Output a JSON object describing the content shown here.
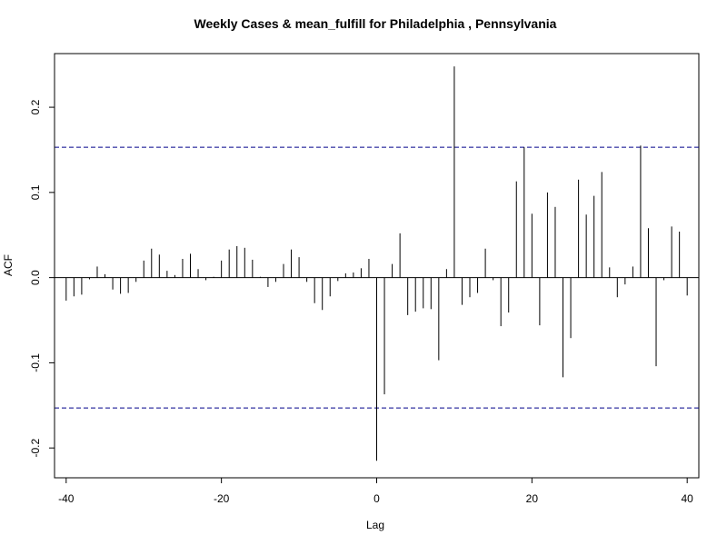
{
  "chart_data": {
    "type": "bar",
    "title": "Weekly Cases & mean_fulfill for Philadelphia , Pennsylvania",
    "xlabel": "Lag",
    "ylabel": "ACF",
    "xlim": [
      -41.5,
      41.5
    ],
    "ylim": [
      -0.235,
      0.263
    ],
    "x_ticks": [
      -40,
      -20,
      0,
      20,
      40
    ],
    "x_tick_labels": [
      "-40",
      "-20",
      "0",
      "20",
      "40"
    ],
    "y_ticks": [
      -0.2,
      -0.1,
      0.0,
      0.1,
      0.2
    ],
    "y_tick_labels": [
      "-0.2",
      "-0.1",
      "0.0",
      "0.1",
      "0.2"
    ],
    "confidence_bound": 0.153,
    "confidence_color": "#00008b",
    "bar_color": "#000000",
    "grid": false,
    "x": [
      -40,
      -39,
      -38,
      -37,
      -36,
      -35,
      -34,
      -33,
      -32,
      -31,
      -30,
      -29,
      -28,
      -27,
      -26,
      -25,
      -24,
      -23,
      -22,
      -21,
      -20,
      -19,
      -18,
      -17,
      -16,
      -15,
      -14,
      -13,
      -12,
      -11,
      -10,
      -9,
      -8,
      -7,
      -6,
      -5,
      -4,
      -3,
      -2,
      -1,
      0,
      1,
      2,
      3,
      4,
      5,
      6,
      7,
      8,
      9,
      10,
      11,
      12,
      13,
      14,
      15,
      16,
      17,
      18,
      19,
      20,
      21,
      22,
      23,
      24,
      25,
      26,
      27,
      28,
      29,
      30,
      31,
      32,
      33,
      34,
      35,
      36,
      37,
      38,
      39,
      40
    ],
    "values": [
      -0.027,
      -0.022,
      -0.02,
      -0.002,
      0.013,
      0.004,
      -0.014,
      -0.019,
      -0.018,
      -0.005,
      0.02,
      0.034,
      0.027,
      0.008,
      0.003,
      0.022,
      0.028,
      0.01,
      -0.003,
      0.001,
      0.02,
      0.033,
      0.037,
      0.035,
      0.021,
      0.001,
      -0.011,
      -0.005,
      0.016,
      0.033,
      0.024,
      -0.005,
      -0.03,
      -0.038,
      -0.022,
      -0.004,
      0.005,
      0.006,
      0.011,
      0.022,
      -0.215,
      -0.137,
      0.016,
      0.052,
      -0.044,
      -0.04,
      -0.036,
      -0.037,
      -0.097,
      0.01,
      0.248,
      -0.032,
      -0.023,
      -0.018,
      0.034,
      -0.003,
      -0.057,
      -0.041,
      0.113,
      0.153,
      0.075,
      -0.056,
      0.1,
      0.083,
      -0.117,
      -0.071,
      0.115,
      0.074,
      0.096,
      0.124,
      0.012,
      -0.023,
      -0.008,
      0.013,
      0.155,
      0.058,
      -0.104,
      -0.003,
      0.06,
      0.054,
      -0.021
    ]
  }
}
